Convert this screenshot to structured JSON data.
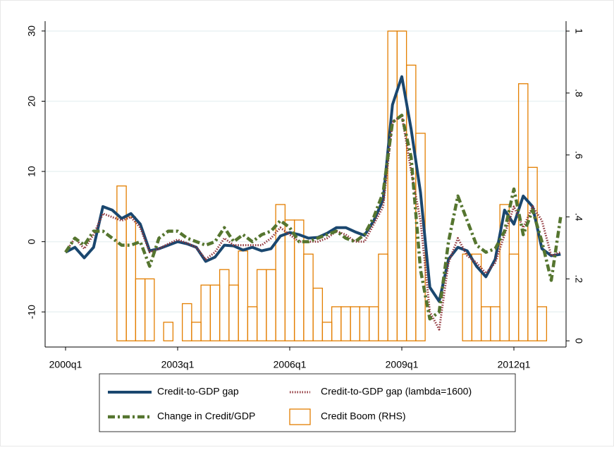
{
  "chart_data": {
    "type": "combo",
    "categories": [
      "2000q1",
      null,
      null,
      null,
      null,
      null,
      null,
      null,
      null,
      null,
      null,
      null,
      "2003q1",
      null,
      null,
      null,
      null,
      null,
      null,
      null,
      null,
      null,
      null,
      null,
      "2006q1",
      null,
      null,
      null,
      null,
      null,
      null,
      null,
      null,
      null,
      null,
      null,
      "2009q1",
      null,
      null,
      null,
      null,
      null,
      null,
      null,
      null,
      null,
      null,
      null,
      "2012q1",
      null,
      null,
      null,
      null,
      null
    ],
    "ylim": [
      -15,
      31.4
    ],
    "yticks": [
      -10,
      0,
      10,
      20,
      30
    ],
    "y2lim": [
      -0.02,
      1.032
    ],
    "y2ticks": [
      0,
      {
        "value": 0.2,
        "label": ".2"
      },
      {
        "value": 0.4,
        "label": ".4"
      },
      {
        "value": 0.6,
        "label": ".6"
      },
      {
        "value": 0.8,
        "label": ".8"
      },
      1
    ],
    "grid": true,
    "legend": "bottom",
    "series": [
      {
        "name": "Credit Boom (RHS)",
        "type": "bar",
        "axis": "y2",
        "color": "#e37e00",
        "values": [
          null,
          null,
          null,
          null,
          null,
          null,
          0.5,
          0.4,
          0.2,
          0.2,
          0,
          0.06,
          0,
          0.12,
          0.06,
          0.18,
          0.18,
          0.23,
          0.18,
          0.29,
          0.11,
          0.23,
          0.23,
          0.44,
          0.39,
          0.39,
          0.28,
          0.17,
          0.06,
          0.11,
          0.11,
          0.11,
          0.11,
          0.11,
          0.28,
          1,
          1,
          0.89,
          0.67,
          0,
          null,
          null,
          null,
          0.28,
          0.28,
          0.11,
          0.11,
          0.44,
          0.28,
          0.83,
          0.56,
          0.11,
          0,
          null
        ]
      },
      {
        "name": "Credit-to-GDP gap",
        "type": "line",
        "style": "solid",
        "color": "#1a476f",
        "values": [
          -1.5,
          -0.8,
          -2.3,
          -0.8,
          5,
          4.5,
          3.3,
          4,
          2.5,
          -1.3,
          -1,
          -0.5,
          0,
          -0.3,
          -0.8,
          -2.8,
          -2.2,
          -0.5,
          -0.6,
          -1.2,
          -0.8,
          -1.3,
          -1,
          0.8,
          1.3,
          1,
          0.5,
          0.6,
          1.2,
          2,
          2,
          1.4,
          0.9,
          3,
          6,
          19.5,
          23.5,
          16,
          7,
          -6.5,
          -8.5,
          -2.5,
          -0.8,
          -1.3,
          -3.5,
          -5,
          -2.5,
          4.5,
          2.5,
          6.5,
          5,
          -1,
          -2,
          -1.8
        ]
      },
      {
        "name": "Credit-to-GDP gap (lambda=1600)",
        "type": "line",
        "style": "dot",
        "color": "#90353b",
        "values": [
          -1.5,
          0.5,
          -1,
          1,
          4,
          3.5,
          3,
          3.5,
          2,
          -1.5,
          -1,
          -0.3,
          0.3,
          -0.2,
          -0.8,
          -2.5,
          -1.5,
          0.5,
          -0.5,
          -0.5,
          -0.5,
          -0.5,
          0.5,
          2,
          1,
          0,
          0,
          0,
          0.5,
          1.5,
          1,
          0,
          0,
          2.5,
          5,
          17,
          18,
          10,
          3,
          -10,
          -12.5,
          -3,
          0.5,
          -2,
          -3,
          -4.5,
          -3,
          1,
          5,
          2,
          5,
          3,
          -2,
          -1.5
        ]
      },
      {
        "name": "Change in Credit/GDP",
        "type": "line",
        "style": "dashdot",
        "color": "#55752f",
        "values": [
          -1.5,
          0.5,
          -0.5,
          1.5,
          1.5,
          0.5,
          -0.5,
          -0.5,
          0,
          -3.5,
          0.5,
          1.5,
          1.5,
          0.5,
          0,
          -0.5,
          0,
          2,
          0,
          1,
          0,
          1,
          1.5,
          3,
          2,
          0,
          0,
          0.5,
          1,
          1.5,
          0.5,
          0,
          1,
          3.5,
          7,
          17,
          18,
          12,
          -4,
          -11,
          -10,
          0,
          6.5,
          3,
          -0.5,
          -1.5,
          -1,
          1.5,
          7.5,
          1,
          4.5,
          0,
          -5.5,
          3.5
        ]
      }
    ]
  }
}
